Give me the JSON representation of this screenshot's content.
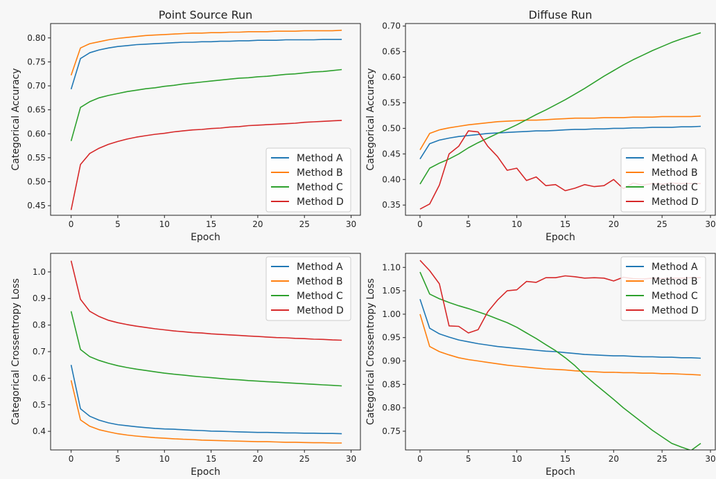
{
  "chart_data": [
    {
      "type": "line",
      "title": "Point Source Run",
      "xlabel": "Epoch",
      "ylabel": "Categorical Accuracy",
      "xlim": [
        -2.2,
        31
      ],
      "ylim": [
        0.43,
        0.83
      ],
      "xticks": [
        0,
        5,
        10,
        15,
        20,
        25,
        30
      ],
      "yticks": [
        0.45,
        0.5,
        0.55,
        0.6,
        0.65,
        0.7,
        0.75,
        0.8
      ],
      "ytick_labels": [
        "0.45",
        "0.50",
        "0.55",
        "0.60",
        "0.65",
        "0.70",
        "0.75",
        "0.80"
      ],
      "legend": "bottom-right",
      "series": [
        {
          "name": "Method A",
          "color": "#1f77b4",
          "values": [
            0.693,
            0.757,
            0.769,
            0.775,
            0.779,
            0.782,
            0.784,
            0.786,
            0.787,
            0.788,
            0.789,
            0.79,
            0.791,
            0.791,
            0.792,
            0.792,
            0.793,
            0.793,
            0.794,
            0.794,
            0.795,
            0.795,
            0.795,
            0.796,
            0.796,
            0.796,
            0.796,
            0.797,
            0.797,
            0.797
          ]
        },
        {
          "name": "Method B",
          "color": "#ff7f0e",
          "values": [
            0.722,
            0.779,
            0.788,
            0.792,
            0.796,
            0.799,
            0.801,
            0.803,
            0.805,
            0.806,
            0.807,
            0.808,
            0.809,
            0.81,
            0.81,
            0.811,
            0.811,
            0.812,
            0.812,
            0.813,
            0.813,
            0.813,
            0.814,
            0.814,
            0.814,
            0.815,
            0.815,
            0.815,
            0.815,
            0.816
          ]
        },
        {
          "name": "Method C",
          "color": "#2ca02c",
          "values": [
            0.585,
            0.655,
            0.667,
            0.675,
            0.68,
            0.684,
            0.688,
            0.691,
            0.694,
            0.696,
            0.699,
            0.701,
            0.704,
            0.706,
            0.708,
            0.71,
            0.712,
            0.714,
            0.716,
            0.717,
            0.719,
            0.72,
            0.722,
            0.724,
            0.725,
            0.727,
            0.729,
            0.73,
            0.732,
            0.734
          ]
        },
        {
          "name": "Method D",
          "color": "#d62728",
          "values": [
            0.441,
            0.536,
            0.559,
            0.57,
            0.578,
            0.584,
            0.589,
            0.593,
            0.596,
            0.599,
            0.601,
            0.604,
            0.606,
            0.608,
            0.609,
            0.611,
            0.612,
            0.614,
            0.615,
            0.617,
            0.618,
            0.619,
            0.62,
            0.621,
            0.622,
            0.624,
            0.625,
            0.626,
            0.627,
            0.628
          ]
        }
      ]
    },
    {
      "type": "line",
      "title": "Diffuse Run",
      "xlabel": "Epoch",
      "ylabel": "Categorical Accuracy",
      "xlim": [
        -1.5,
        30.5
      ],
      "ylim": [
        0.33,
        0.705
      ],
      "xticks": [
        0,
        5,
        10,
        15,
        20,
        25,
        30
      ],
      "yticks": [
        0.35,
        0.4,
        0.45,
        0.5,
        0.55,
        0.6,
        0.65,
        0.7
      ],
      "ytick_labels": [
        "0.35",
        "0.40",
        "0.45",
        "0.50",
        "0.55",
        "0.60",
        "0.65",
        "0.70"
      ],
      "legend": "bottom-right",
      "series": [
        {
          "name": "Method A",
          "color": "#1f77b4",
          "values": [
            0.44,
            0.47,
            0.477,
            0.481,
            0.484,
            0.486,
            0.488,
            0.49,
            0.491,
            0.492,
            0.493,
            0.494,
            0.495,
            0.495,
            0.496,
            0.497,
            0.498,
            0.498,
            0.499,
            0.499,
            0.5,
            0.5,
            0.501,
            0.501,
            0.502,
            0.502,
            0.502,
            0.503,
            0.503,
            0.504
          ]
        },
        {
          "name": "Method B",
          "color": "#ff7f0e",
          "values": [
            0.458,
            0.49,
            0.497,
            0.501,
            0.504,
            0.507,
            0.509,
            0.511,
            0.513,
            0.514,
            0.515,
            0.516,
            0.516,
            0.517,
            0.518,
            0.519,
            0.52,
            0.52,
            0.52,
            0.521,
            0.521,
            0.521,
            0.522,
            0.522,
            0.522,
            0.523,
            0.523,
            0.523,
            0.523,
            0.524
          ]
        },
        {
          "name": "Method C",
          "color": "#2ca02c",
          "values": [
            0.391,
            0.422,
            0.432,
            0.44,
            0.45,
            0.462,
            0.472,
            0.481,
            0.49,
            0.498,
            0.507,
            0.517,
            0.527,
            0.536,
            0.546,
            0.556,
            0.567,
            0.578,
            0.59,
            0.602,
            0.613,
            0.624,
            0.634,
            0.643,
            0.652,
            0.66,
            0.668,
            0.675,
            0.681,
            0.687
          ]
        },
        {
          "name": "Method D",
          "color": "#d62728",
          "values": [
            0.342,
            0.352,
            0.389,
            0.45,
            0.465,
            0.495,
            0.493,
            0.465,
            0.445,
            0.418,
            0.422,
            0.398,
            0.405,
            0.388,
            0.39,
            0.378,
            0.383,
            0.39,
            0.386,
            0.388,
            0.4,
            0.382,
            0.393,
            0.389,
            0.392,
            0.391,
            0.393,
            0.392,
            0.392,
            0.392
          ]
        }
      ]
    },
    {
      "type": "line",
      "title": "",
      "xlabel": "Epoch",
      "ylabel": "Categorical Crossentropy Loss",
      "xlim": [
        -2.2,
        31
      ],
      "ylim": [
        0.33,
        1.07
      ],
      "xticks": [
        0,
        5,
        10,
        15,
        20,
        25,
        30
      ],
      "yticks": [
        0.4,
        0.5,
        0.6,
        0.7,
        0.8,
        0.9,
        1.0
      ],
      "ytick_labels": [
        "0.4",
        "0.5",
        "0.6",
        "0.7",
        "0.8",
        "0.9",
        "1.0"
      ],
      "legend": "top-right",
      "series": [
        {
          "name": "Method A",
          "color": "#1f77b4",
          "values": [
            0.65,
            0.485,
            0.457,
            0.442,
            0.432,
            0.425,
            0.421,
            0.417,
            0.414,
            0.411,
            0.409,
            0.408,
            0.406,
            0.404,
            0.403,
            0.401,
            0.4,
            0.399,
            0.398,
            0.397,
            0.396,
            0.396,
            0.395,
            0.394,
            0.394,
            0.393,
            0.393,
            0.392,
            0.392,
            0.391
          ]
        },
        {
          "name": "Method B",
          "color": "#ff7f0e",
          "values": [
            0.592,
            0.443,
            0.419,
            0.406,
            0.398,
            0.391,
            0.386,
            0.382,
            0.379,
            0.376,
            0.374,
            0.372,
            0.37,
            0.369,
            0.367,
            0.366,
            0.365,
            0.364,
            0.363,
            0.362,
            0.361,
            0.361,
            0.36,
            0.359,
            0.359,
            0.358,
            0.357,
            0.357,
            0.356,
            0.356
          ]
        },
        {
          "name": "Method C",
          "color": "#2ca02c",
          "values": [
            0.852,
            0.708,
            0.681,
            0.667,
            0.656,
            0.647,
            0.64,
            0.634,
            0.629,
            0.624,
            0.619,
            0.615,
            0.612,
            0.608,
            0.605,
            0.602,
            0.599,
            0.596,
            0.594,
            0.591,
            0.589,
            0.587,
            0.585,
            0.583,
            0.581,
            0.579,
            0.577,
            0.575,
            0.573,
            0.571
          ]
        },
        {
          "name": "Method D",
          "color": "#d62728",
          "values": [
            1.042,
            0.897,
            0.852,
            0.832,
            0.818,
            0.809,
            0.802,
            0.796,
            0.791,
            0.786,
            0.782,
            0.778,
            0.775,
            0.772,
            0.77,
            0.767,
            0.765,
            0.763,
            0.761,
            0.759,
            0.757,
            0.755,
            0.753,
            0.752,
            0.75,
            0.749,
            0.747,
            0.746,
            0.744,
            0.743
          ]
        }
      ]
    },
    {
      "type": "line",
      "title": "",
      "xlabel": "Epoch",
      "ylabel": "Categorical Crossentropy Loss",
      "xlim": [
        -1.5,
        30.5
      ],
      "ylim": [
        0.71,
        1.13
      ],
      "xticks": [
        0,
        5,
        10,
        15,
        20,
        25,
        30
      ],
      "yticks": [
        0.75,
        0.8,
        0.85,
        0.9,
        0.95,
        1.0,
        1.05,
        1.1
      ],
      "ytick_labels": [
        "0.75",
        "0.80",
        "0.85",
        "0.90",
        "0.95",
        "1.00",
        "1.05",
        "1.10"
      ],
      "legend": "top-right",
      "series": [
        {
          "name": "Method A",
          "color": "#1f77b4",
          "values": [
            1.032,
            0.97,
            0.958,
            0.951,
            0.945,
            0.941,
            0.937,
            0.934,
            0.931,
            0.929,
            0.927,
            0.925,
            0.923,
            0.921,
            0.92,
            0.918,
            0.916,
            0.914,
            0.913,
            0.912,
            0.911,
            0.911,
            0.91,
            0.909,
            0.909,
            0.908,
            0.908,
            0.907,
            0.907,
            0.906
          ]
        },
        {
          "name": "Method B",
          "color": "#ff7f0e",
          "values": [
            1.0,
            0.931,
            0.92,
            0.913,
            0.907,
            0.903,
            0.9,
            0.897,
            0.894,
            0.891,
            0.889,
            0.887,
            0.885,
            0.883,
            0.882,
            0.881,
            0.879,
            0.878,
            0.877,
            0.876,
            0.876,
            0.875,
            0.875,
            0.874,
            0.874,
            0.873,
            0.873,
            0.872,
            0.871,
            0.87
          ]
        },
        {
          "name": "Method C",
          "color": "#2ca02c",
          "values": [
            1.09,
            1.043,
            1.033,
            1.025,
            1.018,
            1.012,
            1.005,
            0.998,
            0.99,
            0.982,
            0.972,
            0.96,
            0.948,
            0.935,
            0.922,
            0.907,
            0.89,
            0.87,
            0.852,
            0.835,
            0.818,
            0.8,
            0.784,
            0.768,
            0.752,
            0.738,
            0.724,
            0.716,
            0.709,
            0.724
          ]
        },
        {
          "name": "Method D",
          "color": "#d62728",
          "values": [
            1.115,
            1.093,
            1.065,
            0.975,
            0.974,
            0.96,
            0.967,
            1.005,
            1.03,
            1.05,
            1.052,
            1.07,
            1.068,
            1.078,
            1.078,
            1.082,
            1.08,
            1.077,
            1.078,
            1.077,
            1.071,
            1.079,
            1.076,
            1.075,
            1.077,
            1.076,
            1.077,
            1.077,
            1.078,
            1.078
          ]
        }
      ]
    }
  ]
}
